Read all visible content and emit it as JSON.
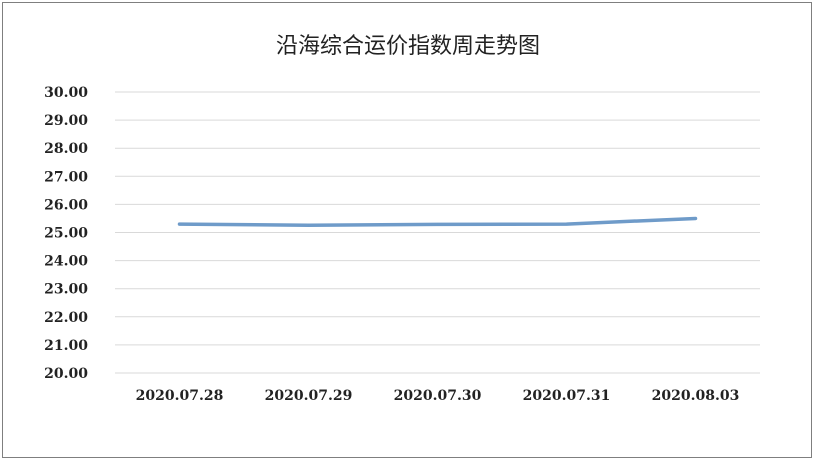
{
  "chart_data": {
    "type": "line",
    "title": "沿海综合运价指数周走势图",
    "categories": [
      "2020.07.28",
      "2020.07.29",
      "2020.07.30",
      "2020.07.31",
      "2020.08.03"
    ],
    "series": [
      {
        "values": [
          25.3,
          25.26,
          25.29,
          25.3,
          25.5
        ]
      }
    ],
    "ylim": [
      20,
      30
    ],
    "y_ticks": [
      "20.00",
      "21.00",
      "22.00",
      "23.00",
      "24.00",
      "25.00",
      "26.00",
      "27.00",
      "28.00",
      "29.00",
      "30.00"
    ],
    "grid": true,
    "line_color": "#6f9bc9"
  }
}
